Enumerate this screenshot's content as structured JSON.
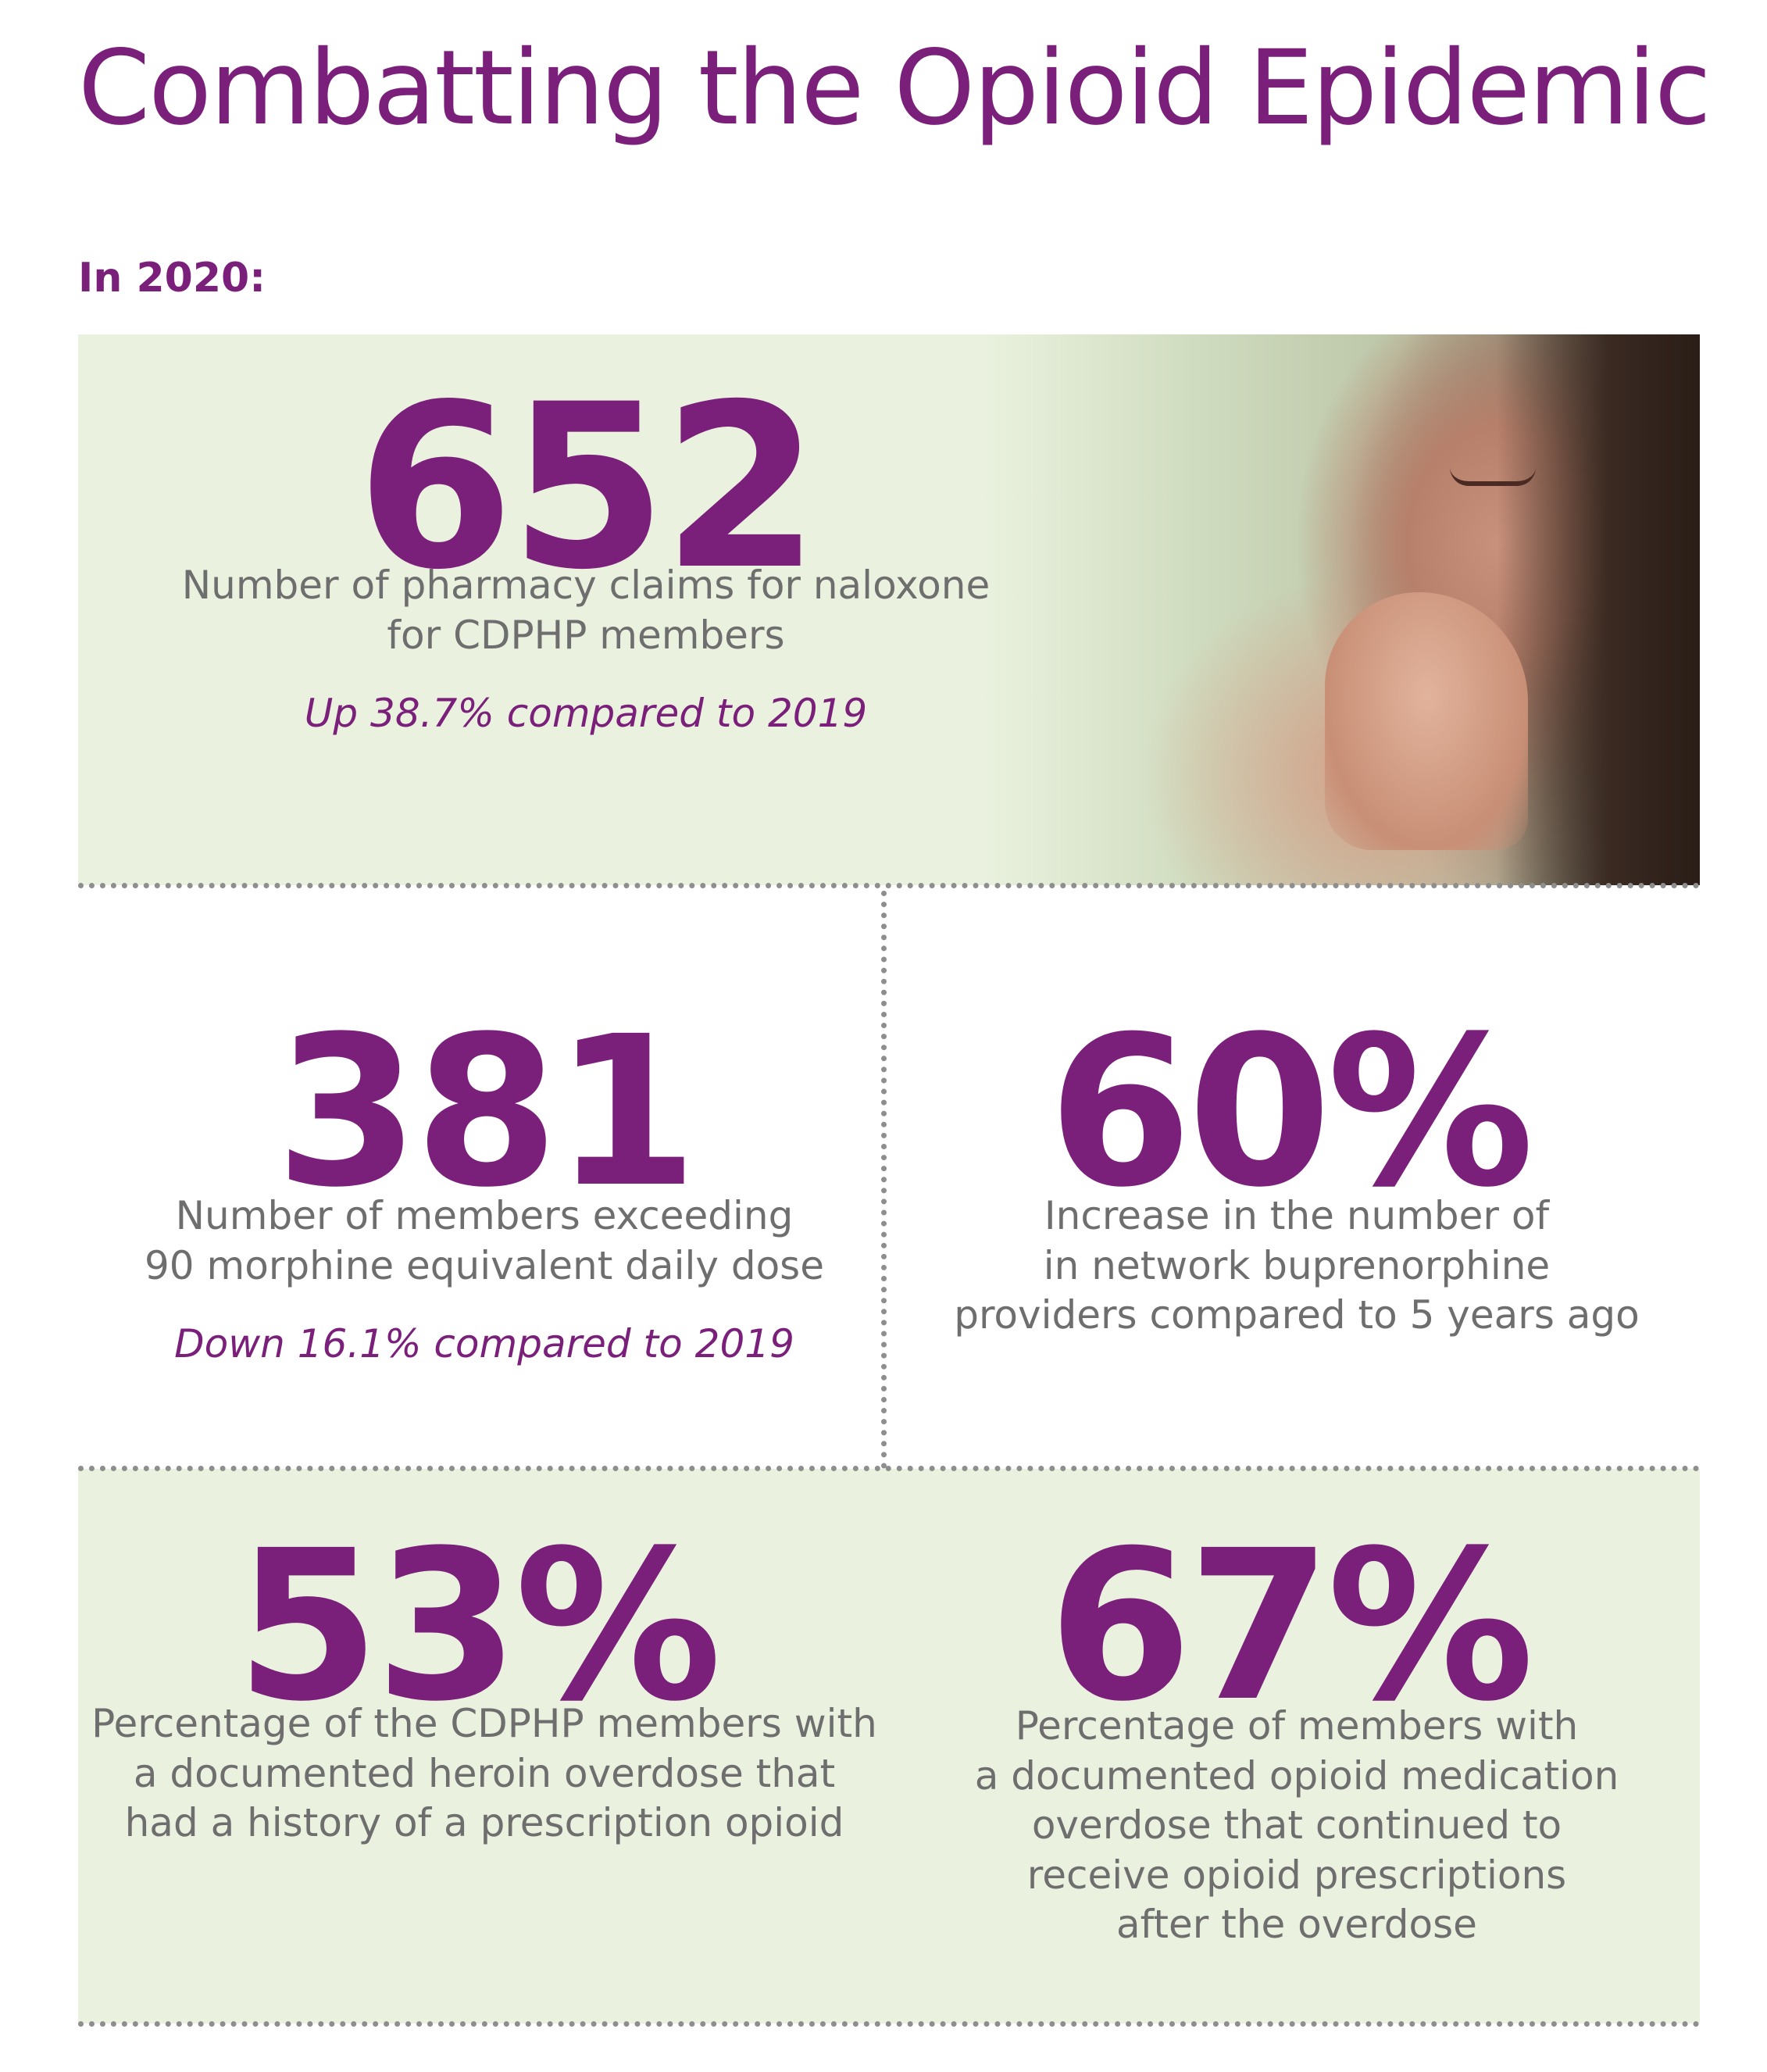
{
  "header": {
    "title": "Combatting the Opioid Epidemic",
    "year_label": "In 2020:"
  },
  "stats": {
    "naloxone": {
      "value": "652",
      "description": "Number of pharmacy claims for naloxone\nfor CDPHP members",
      "change": "Up 38.7% compared to 2019"
    },
    "morphine": {
      "value": "381",
      "description": "Number of members exceeding\n90 morphine equivalent daily dose",
      "change": "Down 16.1% compared to 2019"
    },
    "buprenorphine": {
      "value": "60%",
      "description": "Increase in the number of\nin network buprenorphine\nproviders compared to 5 years ago"
    },
    "heroin": {
      "value": "53%",
      "description": "Percentage of the CDPHP members with\na documented heroin overdose that\nhad a history of a prescription opioid"
    },
    "medication_overdose": {
      "value": "67%",
      "description": "Percentage of members with\na documented opioid medication\noverdose that continued to\nreceive opioid prescriptions\nafter the overdose"
    }
  },
  "colors": {
    "accent": "#7a1f7a",
    "panel": "#eaf2df",
    "body_text": "#6e6e6e",
    "divider": "#8e8e8e"
  }
}
